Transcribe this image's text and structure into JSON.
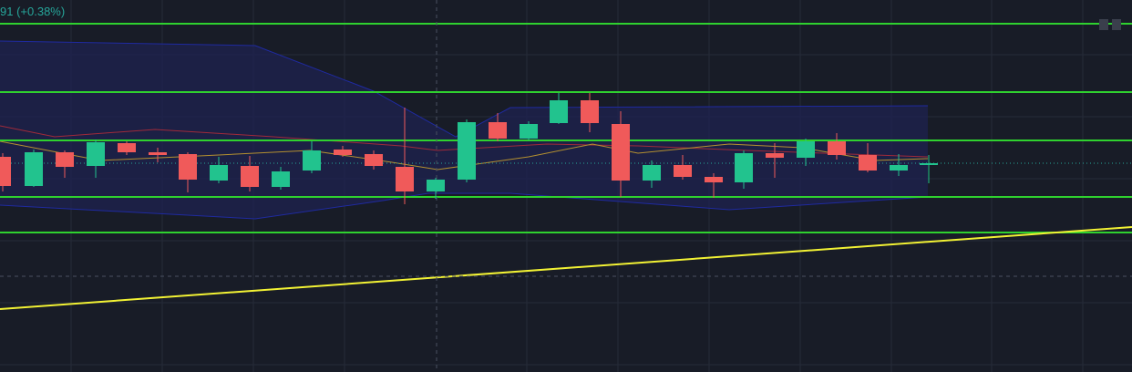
{
  "legend": {
    "change": "91 (+0.38%)"
  }
}
